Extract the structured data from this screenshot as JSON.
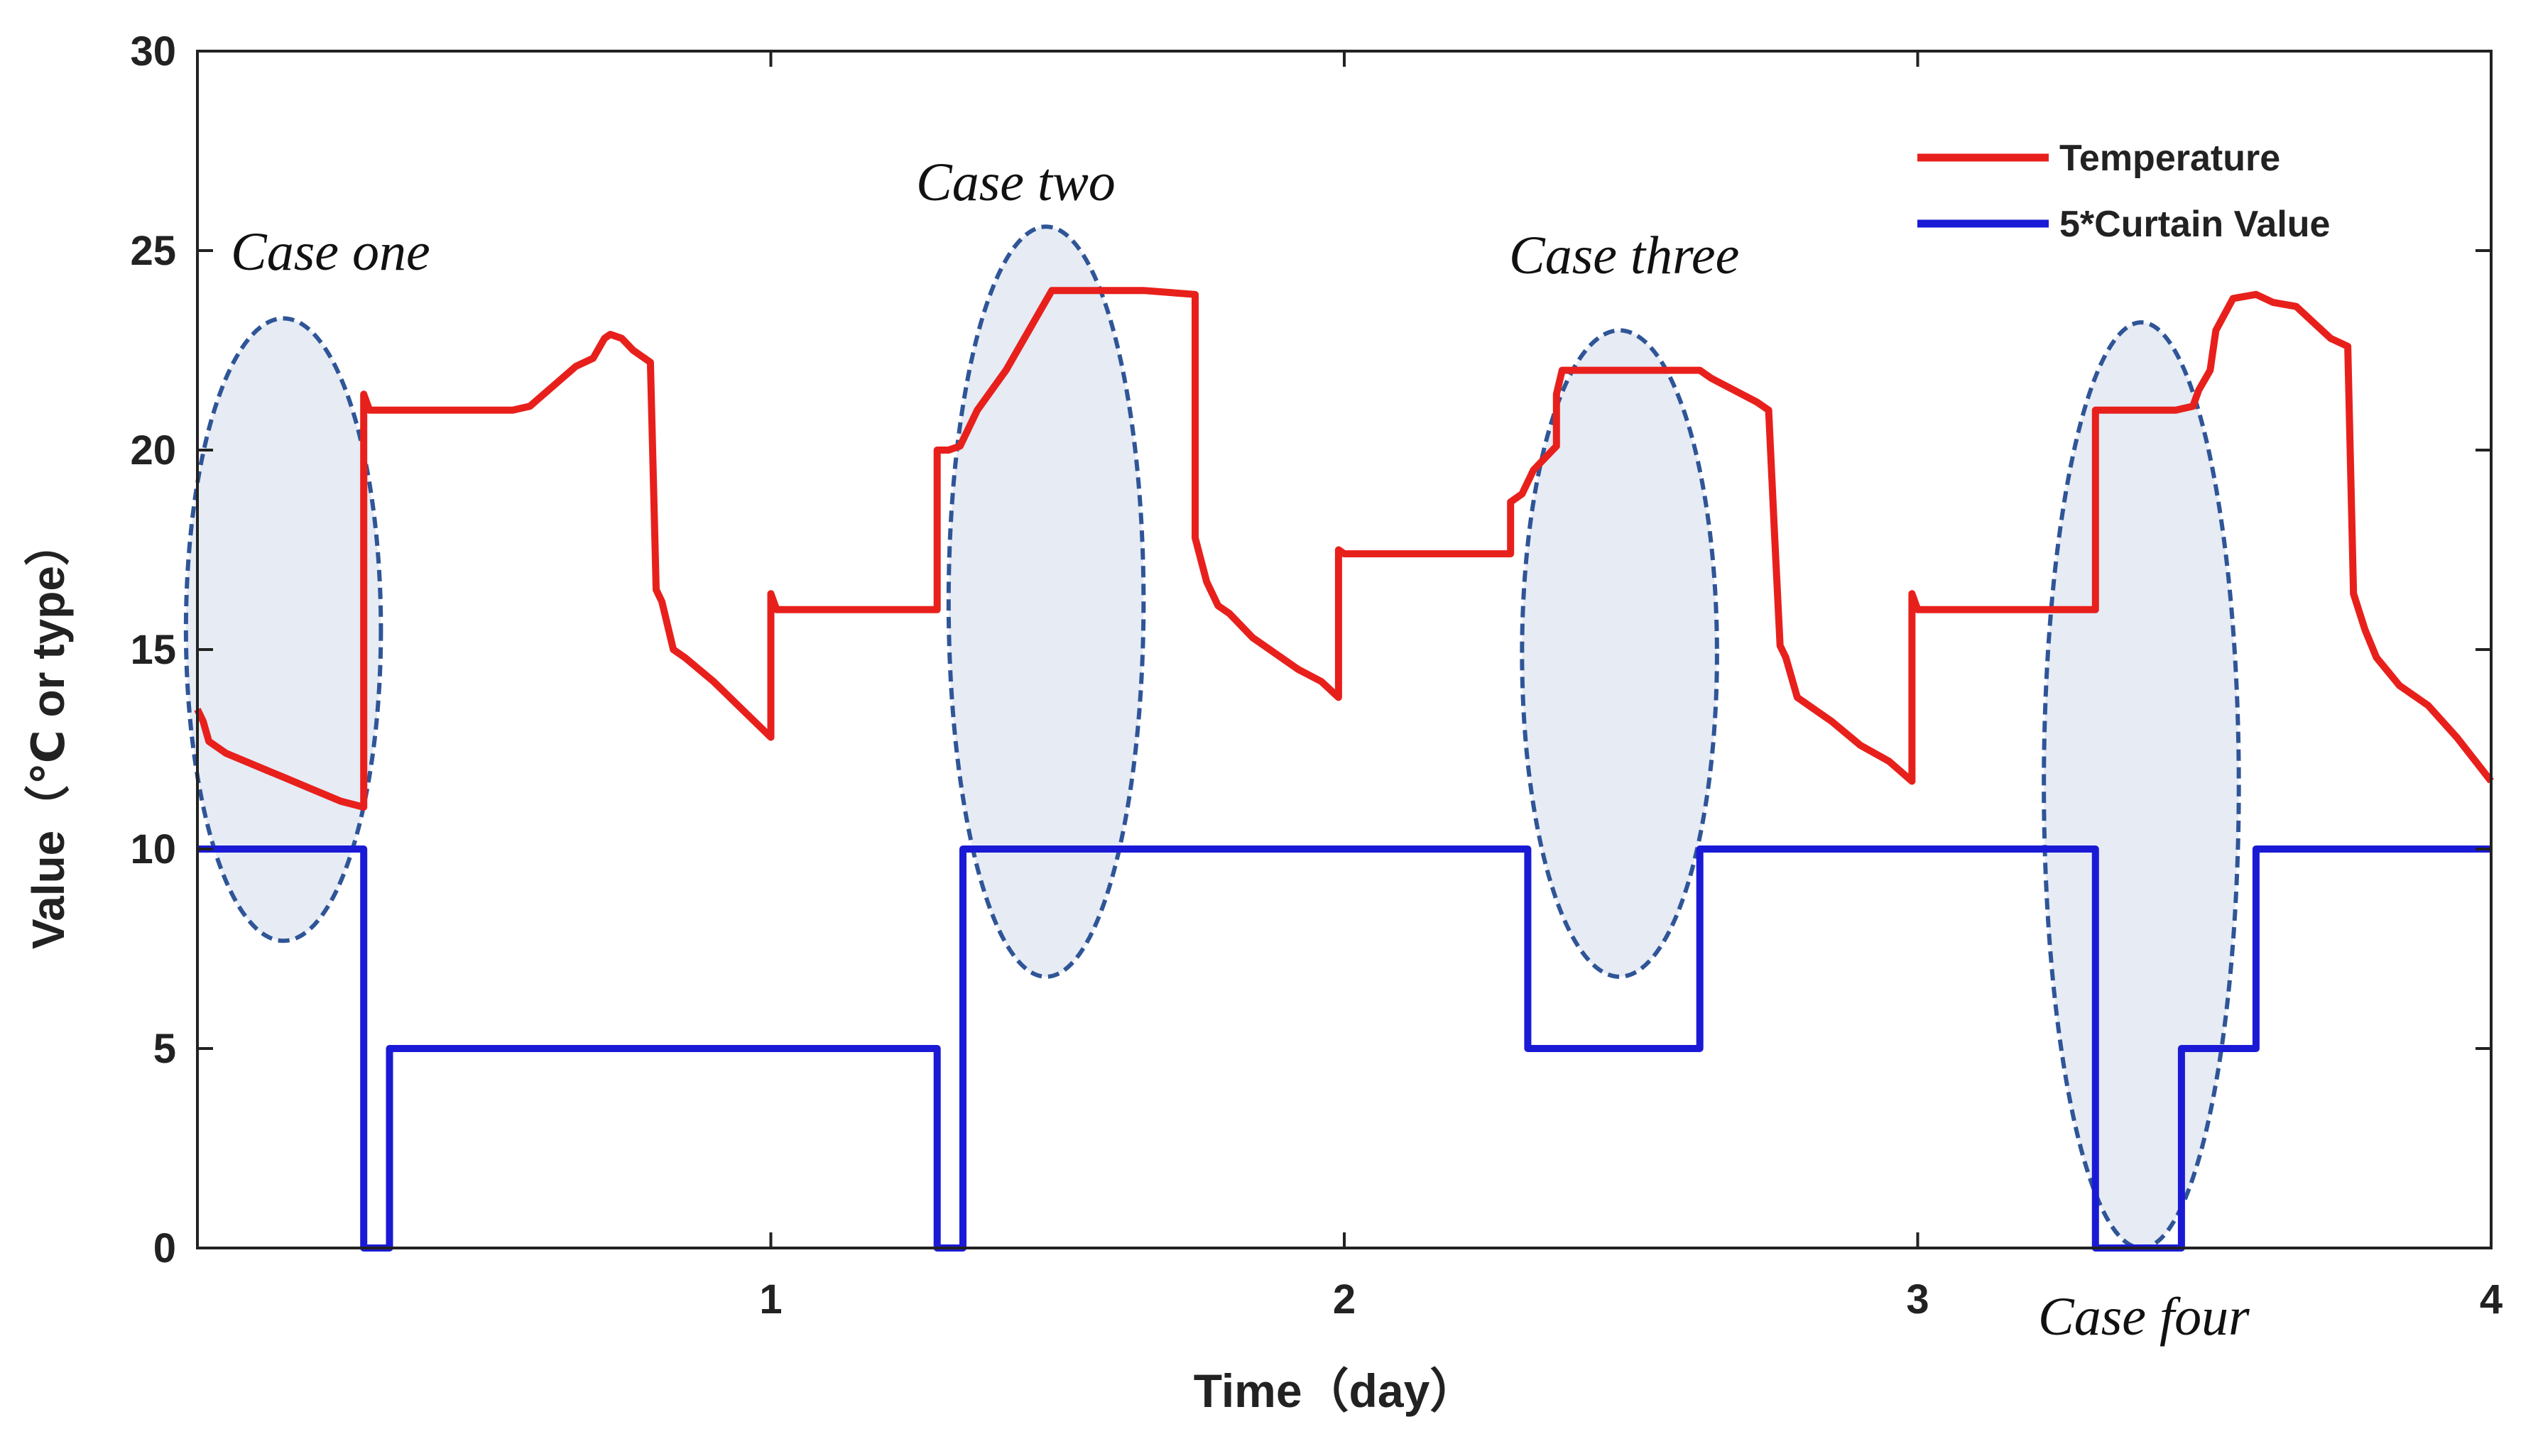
{
  "chart_data": {
    "type": "line",
    "title": "",
    "xlabel": "Time（day）",
    "ylabel": "Value（℃ or type）",
    "xlim": [
      0,
      4
    ],
    "ylim": [
      0,
      30
    ],
    "xticks": [
      1,
      2,
      3,
      4
    ],
    "xtick_labels": [
      "1",
      "2",
      "3",
      "4"
    ],
    "yticks": [
      0,
      5,
      10,
      15,
      20,
      25,
      30
    ],
    "ytick_labels": [
      "0",
      "5",
      "10",
      "15",
      "20",
      "25",
      "30"
    ],
    "grid": false,
    "legend_position": "top-right",
    "series": [
      {
        "name": "Temperature",
        "color": "#e8201c",
        "points": [
          [
            0.0,
            13.5
          ],
          [
            0.01,
            13.2
          ],
          [
            0.02,
            12.7
          ],
          [
            0.05,
            12.4
          ],
          [
            0.1,
            12.1
          ],
          [
            0.15,
            11.8
          ],
          [
            0.2,
            11.5
          ],
          [
            0.25,
            11.2
          ],
          [
            0.29,
            11.05
          ],
          [
            0.29,
            21.4
          ],
          [
            0.3,
            21.0
          ],
          [
            0.4,
            21.0
          ],
          [
            0.55,
            21.0
          ],
          [
            0.58,
            21.1
          ],
          [
            0.62,
            21.6
          ],
          [
            0.66,
            22.1
          ],
          [
            0.69,
            22.3
          ],
          [
            0.71,
            22.8
          ],
          [
            0.72,
            22.9
          ],
          [
            0.74,
            22.8
          ],
          [
            0.76,
            22.5
          ],
          [
            0.77,
            22.4
          ],
          [
            0.79,
            22.2
          ],
          [
            0.8,
            16.5
          ],
          [
            0.81,
            16.2
          ],
          [
            0.83,
            15.0
          ],
          [
            0.85,
            14.8
          ],
          [
            0.9,
            14.2
          ],
          [
            0.95,
            13.5
          ],
          [
            1.0,
            12.8
          ],
          [
            1.0,
            16.4
          ],
          [
            1.01,
            16.0
          ],
          [
            1.1,
            16.0
          ],
          [
            1.2,
            16.0
          ],
          [
            1.29,
            16.0
          ],
          [
            1.29,
            20.0
          ],
          [
            1.31,
            20.0
          ],
          [
            1.33,
            20.1
          ],
          [
            1.36,
            21.0
          ],
          [
            1.41,
            22.0
          ],
          [
            1.45,
            23.0
          ],
          [
            1.47,
            23.5
          ],
          [
            1.49,
            24.0
          ],
          [
            1.55,
            24.0
          ],
          [
            1.65,
            24.0
          ],
          [
            1.74,
            23.9
          ],
          [
            1.74,
            17.8
          ],
          [
            1.76,
            16.7
          ],
          [
            1.78,
            16.1
          ],
          [
            1.8,
            15.9
          ],
          [
            1.84,
            15.3
          ],
          [
            1.88,
            14.9
          ],
          [
            1.92,
            14.5
          ],
          [
            1.96,
            14.2
          ],
          [
            1.99,
            13.8
          ],
          [
            1.99,
            17.5
          ],
          [
            2.0,
            17.4
          ],
          [
            2.1,
            17.4
          ],
          [
            2.2,
            17.4
          ],
          [
            2.29,
            17.4
          ],
          [
            2.29,
            18.7
          ],
          [
            2.31,
            18.9
          ],
          [
            2.33,
            19.5
          ],
          [
            2.35,
            19.8
          ],
          [
            2.37,
            20.1
          ],
          [
            2.37,
            21.4
          ],
          [
            2.38,
            22.0
          ],
          [
            2.45,
            22.0
          ],
          [
            2.55,
            22.0
          ],
          [
            2.62,
            22.0
          ],
          [
            2.64,
            21.8
          ],
          [
            2.68,
            21.5
          ],
          [
            2.72,
            21.2
          ],
          [
            2.74,
            21.0
          ],
          [
            2.75,
            18.0
          ],
          [
            2.76,
            15.1
          ],
          [
            2.77,
            14.8
          ],
          [
            2.79,
            13.8
          ],
          [
            2.85,
            13.2
          ],
          [
            2.9,
            12.6
          ],
          [
            2.95,
            12.2
          ],
          [
            2.99,
            11.7
          ],
          [
            2.99,
            16.4
          ],
          [
            3.0,
            16.0
          ],
          [
            3.1,
            16.0
          ],
          [
            3.2,
            16.0
          ],
          [
            3.31,
            16.0
          ],
          [
            3.31,
            21.0
          ],
          [
            3.35,
            21.0
          ],
          [
            3.45,
            21.0
          ],
          [
            3.48,
            21.1
          ],
          [
            3.49,
            21.5
          ],
          [
            3.51,
            22.0
          ],
          [
            3.52,
            23.0
          ],
          [
            3.55,
            23.8
          ],
          [
            3.59,
            23.9
          ],
          [
            3.62,
            23.7
          ],
          [
            3.66,
            23.6
          ],
          [
            3.69,
            23.2
          ],
          [
            3.72,
            22.8
          ],
          [
            3.75,
            22.6
          ],
          [
            3.76,
            16.4
          ],
          [
            3.78,
            15.5
          ],
          [
            3.8,
            14.8
          ],
          [
            3.84,
            14.1
          ],
          [
            3.89,
            13.6
          ],
          [
            3.94,
            12.8
          ],
          [
            4.0,
            11.7
          ]
        ]
      },
      {
        "name": "5*Curtain Value",
        "color": "#1a1ad6",
        "points": [
          [
            0.0,
            10
          ],
          [
            0.29,
            10
          ],
          [
            0.29,
            0
          ],
          [
            0.335,
            0
          ],
          [
            0.335,
            5
          ],
          [
            1.29,
            5
          ],
          [
            1.29,
            0
          ],
          [
            1.335,
            0
          ],
          [
            1.335,
            10
          ],
          [
            2.32,
            10
          ],
          [
            2.32,
            5
          ],
          [
            2.62,
            5
          ],
          [
            2.62,
            10
          ],
          [
            3.31,
            10
          ],
          [
            3.31,
            0
          ],
          [
            3.46,
            0
          ],
          [
            3.46,
            5
          ],
          [
            3.59,
            5
          ],
          [
            3.59,
            10
          ],
          [
            4.0,
            10
          ]
        ]
      }
    ],
    "annotations": [
      {
        "label": "Case one",
        "center": [
          0.15,
          15.5
        ],
        "rx": 0.17,
        "ry": 7.8
      },
      {
        "label": "Case two",
        "center": [
          1.48,
          16.2
        ],
        "rx": 0.17,
        "ry": 9.4
      },
      {
        "label": "Case three",
        "center": [
          2.48,
          14.9
        ],
        "rx": 0.17,
        "ry": 8.1
      },
      {
        "label": "Case four",
        "center": [
          3.39,
          11.6
        ],
        "rx": 0.17,
        "ry": 11.6
      }
    ]
  }
}
